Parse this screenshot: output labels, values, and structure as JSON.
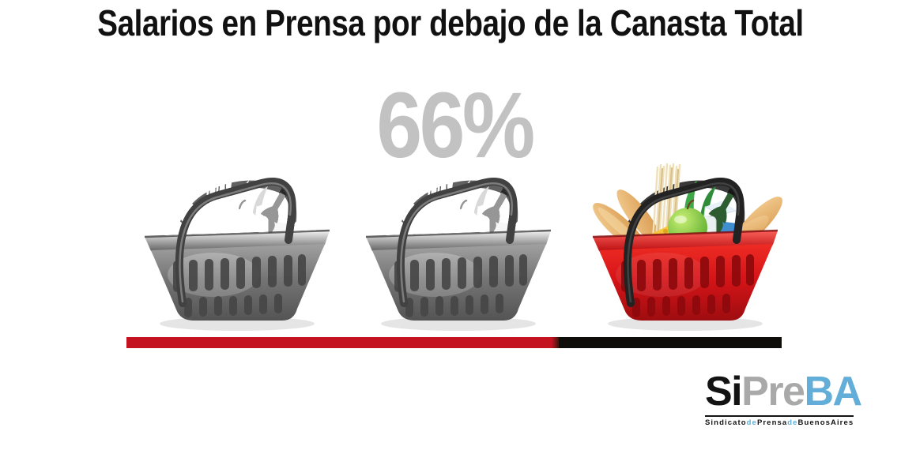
{
  "title": "Salarios en Prensa por debajo de la Canasta Total",
  "stat": {
    "value": "66%"
  },
  "baskets": {
    "items": [
      {
        "name": "canasta-gris-1",
        "style": "gray"
      },
      {
        "name": "canasta-gris-2",
        "style": "gray"
      },
      {
        "name": "canasta-roja",
        "style": "red"
      }
    ]
  },
  "progress": {
    "percent": 66
  },
  "logo": {
    "word": [
      {
        "text": "Si"
      },
      {
        "text": "Pre"
      },
      {
        "text": "BA"
      }
    ],
    "tagline": [
      {
        "text": "Sindicato"
      },
      {
        "text": "de"
      },
      {
        "text": "Prensa"
      },
      {
        "text": "de"
      },
      {
        "text": "BuenosAires"
      }
    ]
  },
  "colors": {
    "background": "#ffffff",
    "stat_gray": "#c2c2c2",
    "bar_red": "#c41220",
    "bar_black": "#0f0d0a",
    "basket_red": "#d61418",
    "logo_black": "#131313",
    "logo_gray": "#a9a9a9",
    "logo_blue": "#62aed8"
  }
}
